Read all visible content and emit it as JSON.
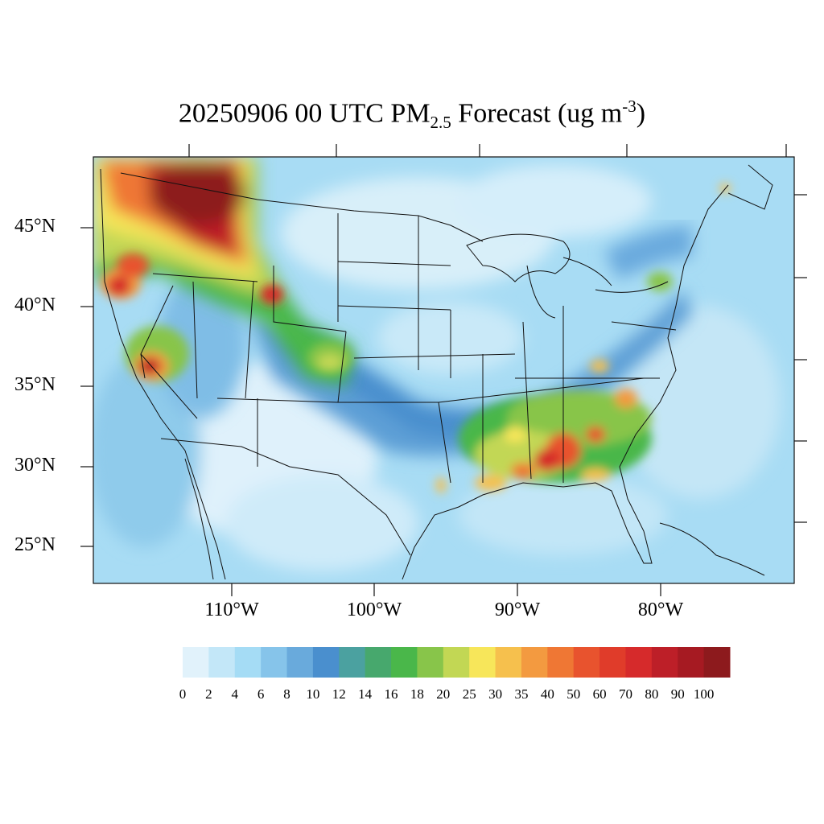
{
  "title": {
    "date": "20250906",
    "hour": "00 UTC",
    "species": "PM",
    "species_sub": "2.5",
    "kind": "Forecast",
    "units_open": "(ug m",
    "units_exp": "-3",
    "units_close": ")"
  },
  "lat_labels": [
    "45°N",
    "40°N",
    "35°N",
    "30°N",
    "25°N"
  ],
  "lon_labels": [
    "110°W",
    "100°W",
    "90°W",
    "80°W"
  ],
  "colorbar": {
    "levels": [
      "0",
      "2",
      "4",
      "6",
      "8",
      "10",
      "12",
      "14",
      "16",
      "18",
      "20",
      "25",
      "30",
      "35",
      "40",
      "50",
      "60",
      "70",
      "80",
      "90",
      "100"
    ],
    "colors": [
      "#e1f2fb",
      "#c3e7f8",
      "#a5dcf5",
      "#86c4ea",
      "#69aadc",
      "#4a8fce",
      "#4ba1a0",
      "#47a86d",
      "#4ab74a",
      "#88c54a",
      "#c2d754",
      "#f7e65a",
      "#f6c04d",
      "#f39a40",
      "#ef7734",
      "#e8532e",
      "#e03c2a",
      "#d62a2b",
      "#bd1f28",
      "#a61a22",
      "#8d1a1d"
    ]
  },
  "plumes": [
    {
      "name": "pacific-northwest-smoke",
      "level": "80-100"
    },
    {
      "name": "northern-california-fire",
      "level": "70-90"
    },
    {
      "name": "central-california-fire",
      "level": "70-90"
    },
    {
      "name": "southeast-us-haze",
      "level": "20-60"
    }
  ]
}
